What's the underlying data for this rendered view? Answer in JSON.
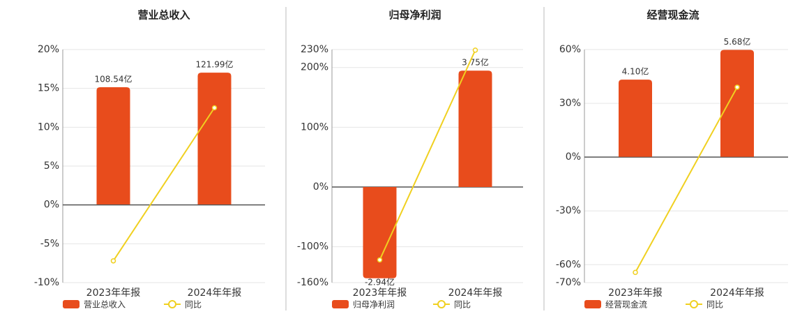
{
  "chart_data": [
    {
      "type": "combo",
      "title": "营业总收入",
      "categories": [
        "2023年年报",
        "2024年年报"
      ],
      "series": [
        {
          "name": "营业总收入",
          "color": "#e84c1c",
          "axis": "y2",
          "values": [
            108.54,
            121.99
          ],
          "value_labels": [
            "108.54亿",
            "121.99亿"
          ]
        },
        {
          "name": "同比",
          "color": "#f0d020",
          "type": "line",
          "values": [
            -7.2,
            12.5
          ]
        }
      ],
      "ylim": [
        -10,
        20
      ],
      "yticks": [
        {
          "value": -10,
          "label": "-10%"
        },
        {
          "value": -5,
          "label": "-5%"
        },
        {
          "value": 0,
          "label": "0%"
        },
        {
          "value": 5,
          "label": "5%"
        },
        {
          "value": 10,
          "label": "10%"
        },
        {
          "value": 15,
          "label": "15%"
        },
        {
          "value": 20,
          "label": "20%"
        }
      ],
      "y2lim": [
        -72.4,
        143.4
      ],
      "grid": true
    },
    {
      "type": "combo",
      "title": "归母净利润",
      "categories": [
        "2023年年报",
        "2024年年报"
      ],
      "series": [
        {
          "name": "归母净利润",
          "color": "#e84c1c",
          "axis": "y2",
          "values": [
            -2.94,
            3.75
          ],
          "value_labels": [
            "-2.94亿",
            "3.75亿"
          ]
        },
        {
          "name": "同比",
          "color": "#f0d020",
          "type": "line",
          "values": [
            -122,
            229
          ]
        }
      ],
      "ylim": [
        -160,
        230
      ],
      "yticks": [
        {
          "value": -160,
          "label": "-160%"
        },
        {
          "value": -100,
          "label": "-100%"
        },
        {
          "value": 0,
          "label": "0%"
        },
        {
          "value": 100,
          "label": "100%"
        },
        {
          "value": 200,
          "label": "200%"
        },
        {
          "value": 230,
          "label": "230%"
        }
      ],
      "y2lim": [
        -3.08,
        4.43
      ],
      "grid": true
    },
    {
      "type": "combo",
      "title": "经营现金流",
      "categories": [
        "2023年年报",
        "2024年年报"
      ],
      "series": [
        {
          "name": "经营现金流",
          "color": "#e84c1c",
          "axis": "y2",
          "values": [
            4.1,
            5.68
          ],
          "value_labels": [
            "4.10亿",
            "5.68亿"
          ]
        },
        {
          "name": "同比",
          "color": "#f0d020",
          "type": "line",
          "values": [
            -64.3,
            39
          ]
        }
      ],
      "ylim": [
        -70,
        60
      ],
      "yticks": [
        {
          "value": -70,
          "label": "-70%"
        },
        {
          "value": -60,
          "label": "-60%"
        },
        {
          "value": -30,
          "label": "-30%"
        },
        {
          "value": 0,
          "label": "0%"
        },
        {
          "value": 30,
          "label": "30%"
        },
        {
          "value": 60,
          "label": "60%"
        }
      ],
      "y2lim": [
        -6.68,
        5.7
      ],
      "grid": true
    }
  ]
}
